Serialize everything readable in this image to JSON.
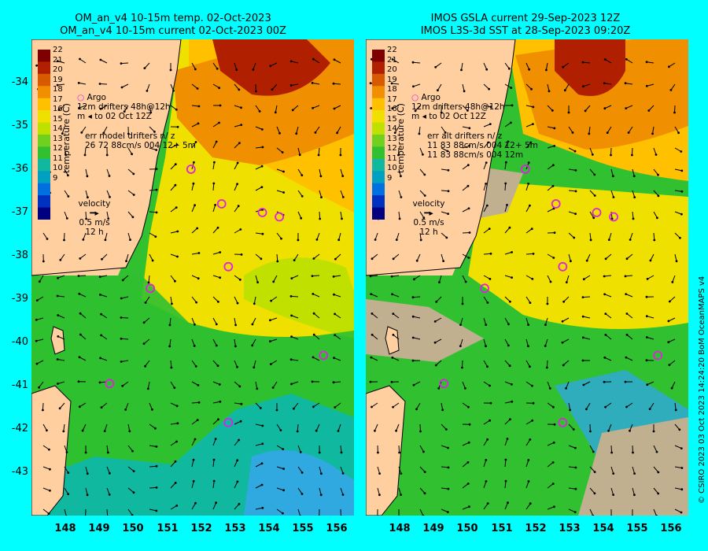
{
  "left_panel": {
    "title_line1": "OM_an_v4  10-15m temp. 02-Oct-2023",
    "title_line2": "OM_an_v4  10-15m current 02-Oct-2023 00Z",
    "legend_argo": "Argo",
    "legend_drifters": "drifters 48h@12h",
    "legend_to_date": "to 02 Oct 12Z",
    "legend_12m": "12m",
    "legend_m": "m",
    "err_line1": "err model drifters n/ z",
    "err_line2": "26 72 88cm/s 004 12+ 5m",
    "err_line3": ""
  },
  "right_panel": {
    "title_line1": "IMOS GSLA current 29-Sep-2023 12Z",
    "title_line2": "IMOS L3S-3d SST at 28-Sep-2023 09:20Z",
    "legend_argo": "Argo",
    "legend_drifters": "drifters 48h@12h",
    "legend_to_date": "to 02 Oct 12Z",
    "legend_12m": "12m",
    "legend_m": "m",
    "err_line1": "err alt drifters n/ z",
    "err_line2": "11 83 88cm/s 004 12+ 5m",
    "err_line3": "11 83 88cm/s 004 12m"
  },
  "colorbar": {
    "title": "temperature (C)",
    "ticks": [
      "22",
      "21",
      "20",
      "19",
      "18",
      "17",
      "16",
      "15",
      "14",
      "13",
      "12",
      "11",
      "10",
      "9"
    ],
    "colors": [
      "#7f0000",
      "#b02000",
      "#d85a00",
      "#f09000",
      "#ffc000",
      "#f0e000",
      "#c0e000",
      "#70d020",
      "#30c030",
      "#10b8a0",
      "#00a0c0",
      "#0070e0",
      "#0030c0",
      "#000080"
    ]
  },
  "velocity_key": {
    "label": "velocity",
    "speed": "0.5 m/s",
    "duration": "12 h"
  },
  "y_axis_ticks": [
    "-34",
    "-35",
    "-36",
    "-37",
    "-38",
    "-39",
    "-40",
    "-41",
    "-42",
    "-43"
  ],
  "x_axis_ticks": [
    "148",
    "149",
    "150",
    "151",
    "152",
    "153",
    "154",
    "155",
    "156"
  ],
  "footer": "© CSIRO 2023   03 Oct 2023 14:24:20 BoM OceanMAPS v4",
  "map_extent": {
    "lon_min": 147.0,
    "lon_max": 156.5,
    "lat_min": -44.0,
    "lat_max": -33.0
  },
  "argo_floats": [
    {
      "lon": 151.7,
      "lat": -36.0
    },
    {
      "lon": 152.6,
      "lat": -36.8
    },
    {
      "lon": 153.8,
      "lat": -37.0
    },
    {
      "lon": 154.3,
      "lat": -37.1
    },
    {
      "lon": 152.8,
      "lat": -38.25
    },
    {
      "lon": 150.5,
      "lat": -38.75
    },
    {
      "lon": 149.3,
      "lat": -40.95
    },
    {
      "lon": 152.8,
      "lat": -41.85
    },
    {
      "lon": 155.6,
      "lat": -40.3
    }
  ]
}
